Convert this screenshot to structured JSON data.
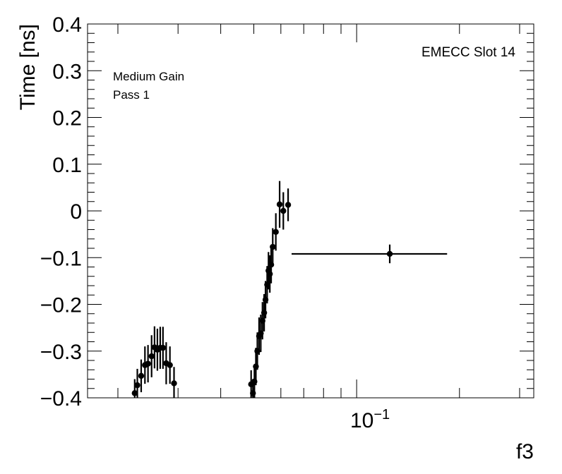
{
  "chart_data": {
    "type": "scatter",
    "title": "",
    "xlabel": "f3",
    "ylabel": "Time [ns]",
    "x_scale": "log",
    "xlim": [
      0.0163,
      0.33
    ],
    "ylim": [
      -0.4,
      0.4
    ],
    "y_ticks": [
      {
        "value": 0.4,
        "label": "0.4"
      },
      {
        "value": 0.3,
        "label": "0.3"
      },
      {
        "value": 0.2,
        "label": "0.2"
      },
      {
        "value": 0.1,
        "label": "0.1"
      },
      {
        "value": 0.0,
        "label": "0"
      },
      {
        "value": -0.1,
        "label": "−0.1"
      },
      {
        "value": -0.2,
        "label": "−0.2"
      },
      {
        "value": -0.3,
        "label": "−0.3"
      },
      {
        "value": -0.4,
        "label": "−0.4"
      }
    ],
    "x_tick_label": {
      "base": "10",
      "exponent": "−1",
      "value": 0.1
    },
    "grid": false,
    "annotations": {
      "top_right": "EMECC Slot 14",
      "line1": "Medium Gain",
      "line2": "Pass 1"
    },
    "color": "#000000",
    "points": [
      {
        "x": 0.0224,
        "y": -0.39,
        "yerr": 0.03
      },
      {
        "x": 0.0228,
        "y": -0.373,
        "yerr": 0.035
      },
      {
        "x": 0.0234,
        "y": -0.353,
        "yerr": 0.035
      },
      {
        "x": 0.024,
        "y": -0.33,
        "yerr": 0.04
      },
      {
        "x": 0.0245,
        "y": -0.327,
        "yerr": 0.04
      },
      {
        "x": 0.0251,
        "y": -0.311,
        "yerr": 0.045
      },
      {
        "x": 0.0256,
        "y": -0.292,
        "yerr": 0.045
      },
      {
        "x": 0.0261,
        "y": -0.297,
        "yerr": 0.045
      },
      {
        "x": 0.0266,
        "y": -0.293,
        "yerr": 0.045
      },
      {
        "x": 0.0271,
        "y": -0.293,
        "yerr": 0.045
      },
      {
        "x": 0.0277,
        "y": -0.326,
        "yerr": 0.045
      },
      {
        "x": 0.0284,
        "y": -0.33,
        "yerr": 0.04
      },
      {
        "x": 0.0292,
        "y": -0.369,
        "yerr": 0.035
      },
      {
        "x": 0.0491,
        "y": -0.371,
        "yerr": 0.03
      },
      {
        "x": 0.0497,
        "y": -0.39,
        "yerr": 0.03
      },
      {
        "x": 0.0502,
        "y": -0.365,
        "yerr": 0.035
      },
      {
        "x": 0.0507,
        "y": -0.333,
        "yerr": 0.04
      },
      {
        "x": 0.0512,
        "y": -0.3,
        "yerr": 0.04
      },
      {
        "x": 0.0518,
        "y": -0.268,
        "yerr": 0.04
      },
      {
        "x": 0.0524,
        "y": -0.262,
        "yerr": 0.04
      },
      {
        "x": 0.053,
        "y": -0.235,
        "yerr": 0.04
      },
      {
        "x": 0.0536,
        "y": -0.218,
        "yerr": 0.04
      },
      {
        "x": 0.0541,
        "y": -0.19,
        "yerr": 0.04
      },
      {
        "x": 0.0547,
        "y": -0.158,
        "yerr": 0.04
      },
      {
        "x": 0.0552,
        "y": -0.128,
        "yerr": 0.04
      },
      {
        "x": 0.0557,
        "y": -0.135,
        "yerr": 0.04
      },
      {
        "x": 0.0562,
        "y": -0.115,
        "yerr": 0.04
      },
      {
        "x": 0.0568,
        "y": -0.077,
        "yerr": 0.04
      },
      {
        "x": 0.058,
        "y": -0.045,
        "yerr": 0.04
      },
      {
        "x": 0.0595,
        "y": 0.014,
        "yerr": 0.05
      },
      {
        "x": 0.061,
        "y": 0.0,
        "yerr": 0.04
      },
      {
        "x": 0.063,
        "y": 0.013,
        "yerr": 0.035
      },
      {
        "x": 0.125,
        "y": -0.092,
        "yerr": 0.02,
        "xerr_low": 0.0645,
        "xerr_high": 0.184
      }
    ]
  }
}
